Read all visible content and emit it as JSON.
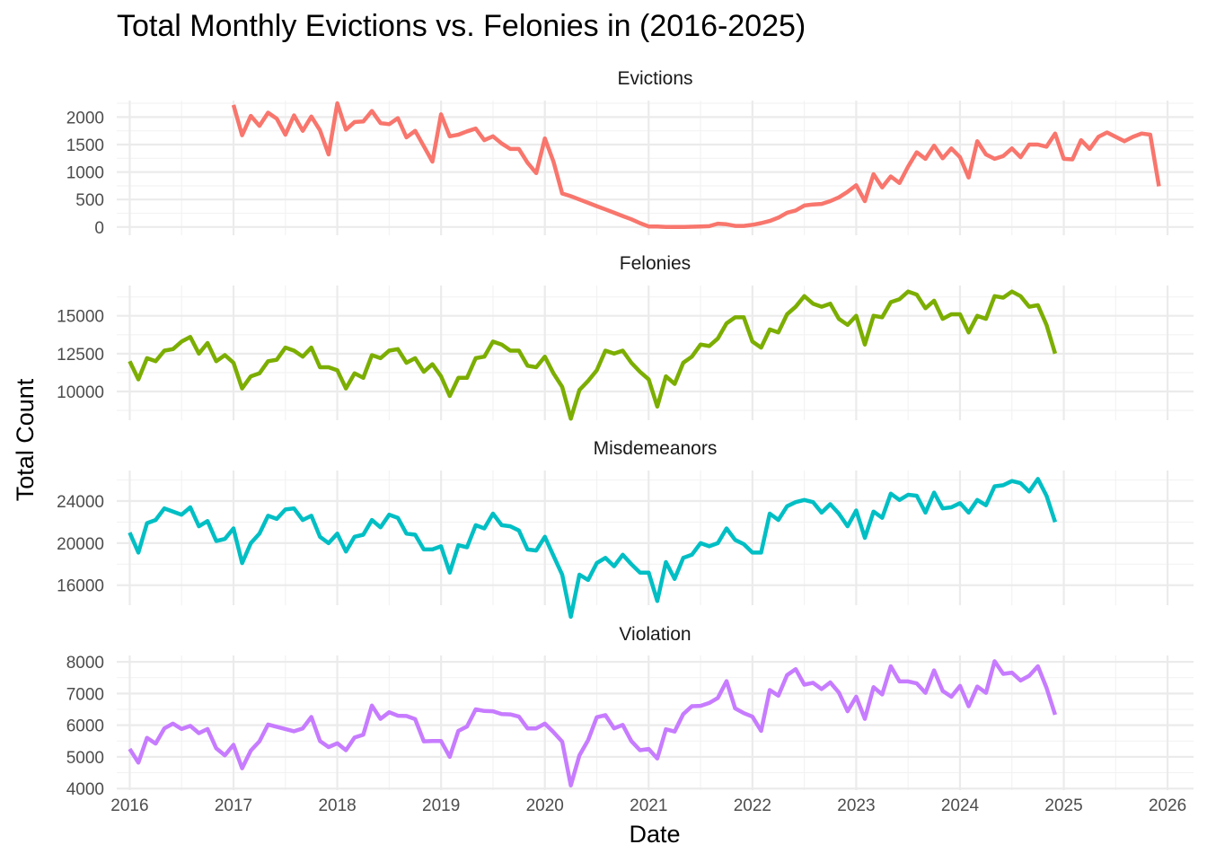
{
  "chart_data": {
    "type": "line",
    "title": "Total Monthly Evictions vs. Felonies in (2016-2025)",
    "xlabel": "Date",
    "ylabel": "Total Count",
    "x_ticks": [
      "2016",
      "2017",
      "2018",
      "2019",
      "2020",
      "2021",
      "2022",
      "2023",
      "2024",
      "2025",
      "2026"
    ],
    "x_range": [
      2015.875,
      2026.25
    ],
    "grid": true,
    "legend": "none",
    "panels": [
      {
        "name": "Evictions",
        "color": "#F8766D",
        "ylim": [
          -150,
          2300
        ],
        "y_ticks": [
          0,
          500,
          1000,
          1500,
          2000
        ],
        "start": "2017-01",
        "values": [
          2220,
          1670,
          2020,
          1840,
          2080,
          1970,
          1680,
          2030,
          1750,
          2010,
          1760,
          1320,
          2250,
          1770,
          1910,
          1920,
          2110,
          1890,
          1870,
          1980,
          1630,
          1750,
          1470,
          1190,
          2050,
          1650,
          1680,
          1740,
          1790,
          1580,
          1650,
          1520,
          1420,
          1420,
          1170,
          980,
          1610,
          1190,
          610,
          560,
          500,
          440,
          380,
          320,
          260,
          200,
          140,
          70,
          10,
          10,
          0,
          0,
          0,
          5,
          10,
          15,
          60,
          50,
          20,
          20,
          40,
          70,
          110,
          170,
          260,
          300,
          390,
          410,
          420,
          470,
          540,
          640,
          760,
          470,
          960,
          720,
          920,
          800,
          1100,
          1360,
          1240,
          1480,
          1250,
          1430,
          1270,
          900,
          1560,
          1320,
          1240,
          1290,
          1430,
          1270,
          1500,
          1500,
          1460,
          1700,
          1240,
          1230,
          1580,
          1420,
          1640,
          1720,
          1640,
          1560,
          1640,
          1700,
          1680,
          740
        ]
      },
      {
        "name": "Felonies",
        "color": "#7CAE00",
        "ylim": [
          8100,
          17000
        ],
        "y_ticks": [
          10000,
          12500,
          15000
        ],
        "start": "2016-01",
        "values": [
          12000,
          10800,
          12200,
          12000,
          12700,
          12800,
          13300,
          13600,
          12500,
          13200,
          12000,
          12400,
          11900,
          10200,
          11000,
          11200,
          12000,
          12100,
          12900,
          12700,
          12300,
          12900,
          11600,
          11600,
          11400,
          10200,
          11200,
          10900,
          12400,
          12200,
          12700,
          12800,
          11900,
          12200,
          11300,
          11800,
          11000,
          9700,
          10900,
          10900,
          12200,
          12300,
          13300,
          13100,
          12700,
          12700,
          11700,
          11600,
          12300,
          11200,
          10300,
          8200,
          10100,
          10700,
          11400,
          12700,
          12500,
          12700,
          11900,
          11300,
          10800,
          9000,
          11000,
          10500,
          11900,
          12300,
          13100,
          13000,
          13500,
          14500,
          14900,
          14900,
          13300,
          12900,
          14100,
          13900,
          15100,
          15600,
          16300,
          15800,
          15600,
          15800,
          14800,
          14400,
          15000,
          13100,
          15000,
          14900,
          15900,
          16100,
          16600,
          16400,
          15500,
          16000,
          14800,
          15100,
          15100,
          13900,
          15000,
          14800,
          16300,
          16200,
          16600,
          16300,
          15600,
          15700,
          14400,
          12500
        ]
      },
      {
        "name": "Misdemeanors",
        "color": "#00BFC4",
        "ylim": [
          14100,
          26900
        ],
        "y_ticks": [
          16000,
          20000,
          24000
        ],
        "start": "2016-01",
        "values": [
          21000,
          19100,
          21900,
          22200,
          23300,
          23000,
          22700,
          23400,
          21600,
          22100,
          20200,
          20400,
          21400,
          18100,
          20000,
          20900,
          22600,
          22300,
          23200,
          23300,
          22200,
          22600,
          20600,
          20000,
          20900,
          19200,
          20600,
          20800,
          22200,
          21500,
          22700,
          22400,
          20900,
          20800,
          19400,
          19400,
          19700,
          17200,
          19800,
          19600,
          21700,
          21400,
          22800,
          21700,
          21600,
          21200,
          19400,
          19300,
          20600,
          18800,
          17000,
          13000,
          17000,
          16500,
          18100,
          18600,
          17800,
          18900,
          18000,
          17200,
          17200,
          14500,
          18200,
          16600,
          18600,
          18900,
          20000,
          19700,
          20000,
          21400,
          20300,
          19900,
          19100,
          19100,
          22800,
          22200,
          23500,
          23900,
          24100,
          23900,
          22900,
          23700,
          22800,
          21600,
          23100,
          20500,
          23000,
          22400,
          24700,
          24100,
          24600,
          24500,
          22900,
          24800,
          23300,
          23400,
          23800,
          22900,
          24100,
          23600,
          25400,
          25500,
          25900,
          25700,
          24900,
          26100,
          24500,
          22000
        ]
      },
      {
        "name": "Violation",
        "color": "#C77CFF",
        "ylim": [
          3950,
          8200
        ],
        "y_ticks": [
          4000,
          5000,
          6000,
          7000,
          8000
        ],
        "start": "2016-01",
        "values": [
          5250,
          4820,
          5600,
          5420,
          5900,
          6050,
          5880,
          5980,
          5750,
          5880,
          5270,
          5050,
          5380,
          4640,
          5200,
          5490,
          6020,
          5950,
          5880,
          5810,
          5900,
          6260,
          5500,
          5310,
          5430,
          5210,
          5610,
          5700,
          6620,
          6200,
          6410,
          6300,
          6290,
          6190,
          5490,
          5500,
          5500,
          5000,
          5820,
          5960,
          6500,
          6450,
          6440,
          6350,
          6340,
          6270,
          5900,
          5900,
          6050,
          5780,
          5480,
          4100,
          5050,
          5530,
          6250,
          6320,
          5900,
          6010,
          5500,
          5210,
          5250,
          4950,
          5870,
          5800,
          6350,
          6600,
          6610,
          6700,
          6860,
          7390,
          6530,
          6380,
          6270,
          5820,
          7110,
          6930,
          7580,
          7770,
          7280,
          7340,
          7140,
          7350,
          7030,
          6440,
          6900,
          6200,
          7200,
          6970,
          7860,
          7380,
          7380,
          7320,
          7020,
          7730,
          7080,
          6900,
          7240,
          6600,
          7220,
          7020,
          8020,
          7620,
          7660,
          7410,
          7560,
          7860,
          7180,
          6330
        ]
      }
    ]
  }
}
